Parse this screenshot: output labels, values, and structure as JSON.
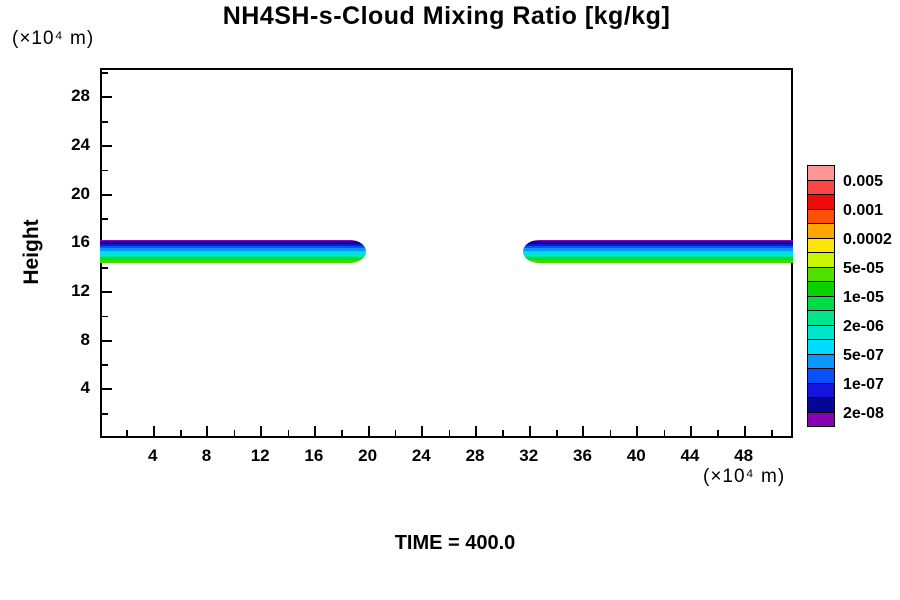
{
  "chart_data": {
    "type": "heatmap",
    "title": "NH4SH-s-Cloud Mixing Ratio [kg/kg]",
    "xlabel": "(×10⁴ m)",
    "ylabel": "Height",
    "ylabel_unit": "(×10⁴ m)",
    "annotation": "TIME = 400.0",
    "xlim": [
      0,
      51.6
    ],
    "ylim": [
      0,
      30.4
    ],
    "grid": false,
    "legend_position": "right",
    "x_ticks_major": [
      4,
      8,
      12,
      16,
      20,
      24,
      28,
      32,
      36,
      40,
      44,
      48
    ],
    "x_ticks_minor": [
      2,
      6,
      10,
      14,
      18,
      22,
      26,
      30,
      34,
      38,
      42,
      46,
      50
    ],
    "y_ticks_major": [
      4,
      8,
      12,
      16,
      20,
      24,
      28
    ],
    "y_ticks_minor": [
      2,
      6,
      10,
      14,
      18,
      22,
      26,
      30
    ],
    "colorbar": {
      "labels_top_to_bottom": [
        "0.005",
        "0.001",
        "0.0002",
        "5e-05",
        "1e-05",
        "2e-06",
        "5e-07",
        "1e-07",
        "2e-08"
      ],
      "colors_top_to_bottom": [
        "#FF9696",
        "#FA4646",
        "#F00A0A",
        "#FA500A",
        "#FFA500",
        "#FFE600",
        "#C8F500",
        "#50E100",
        "#0AD200",
        "#00DC46",
        "#00E68C",
        "#00E6C8",
        "#00DCFF",
        "#0A96FF",
        "#0A50FF",
        "#1414DC",
        "#050596",
        "#8C00B4"
      ]
    },
    "bands": [
      {
        "name": "cloud-band-left",
        "x_range": [
          0,
          19.8
        ],
        "y_range": [
          14.4,
          16.3
        ],
        "tip": "right"
      },
      {
        "name": "cloud-band-right",
        "x_range": [
          31.5,
          51.6
        ],
        "y_range": [
          14.4,
          16.3
        ],
        "tip": "left"
      }
    ],
    "band_layers_top_to_bottom": [
      {
        "color": "#8C00B4",
        "frac": 0.08
      },
      {
        "color": "#050596",
        "frac": 0.1
      },
      {
        "color": "#1414DC",
        "frac": 0.1
      },
      {
        "color": "#0A50FF",
        "frac": 0.1
      },
      {
        "color": "#0996FF",
        "frac": 0.11
      },
      {
        "color": "#00DCFF",
        "frac": 0.12
      },
      {
        "color": "#00E6C8",
        "frac": 0.08
      },
      {
        "color": "#00E68C",
        "frac": 0.08
      },
      {
        "color": "#00DC46",
        "frac": 0.1
      },
      {
        "color": "#3CDC00",
        "frac": 0.13
      }
    ]
  }
}
